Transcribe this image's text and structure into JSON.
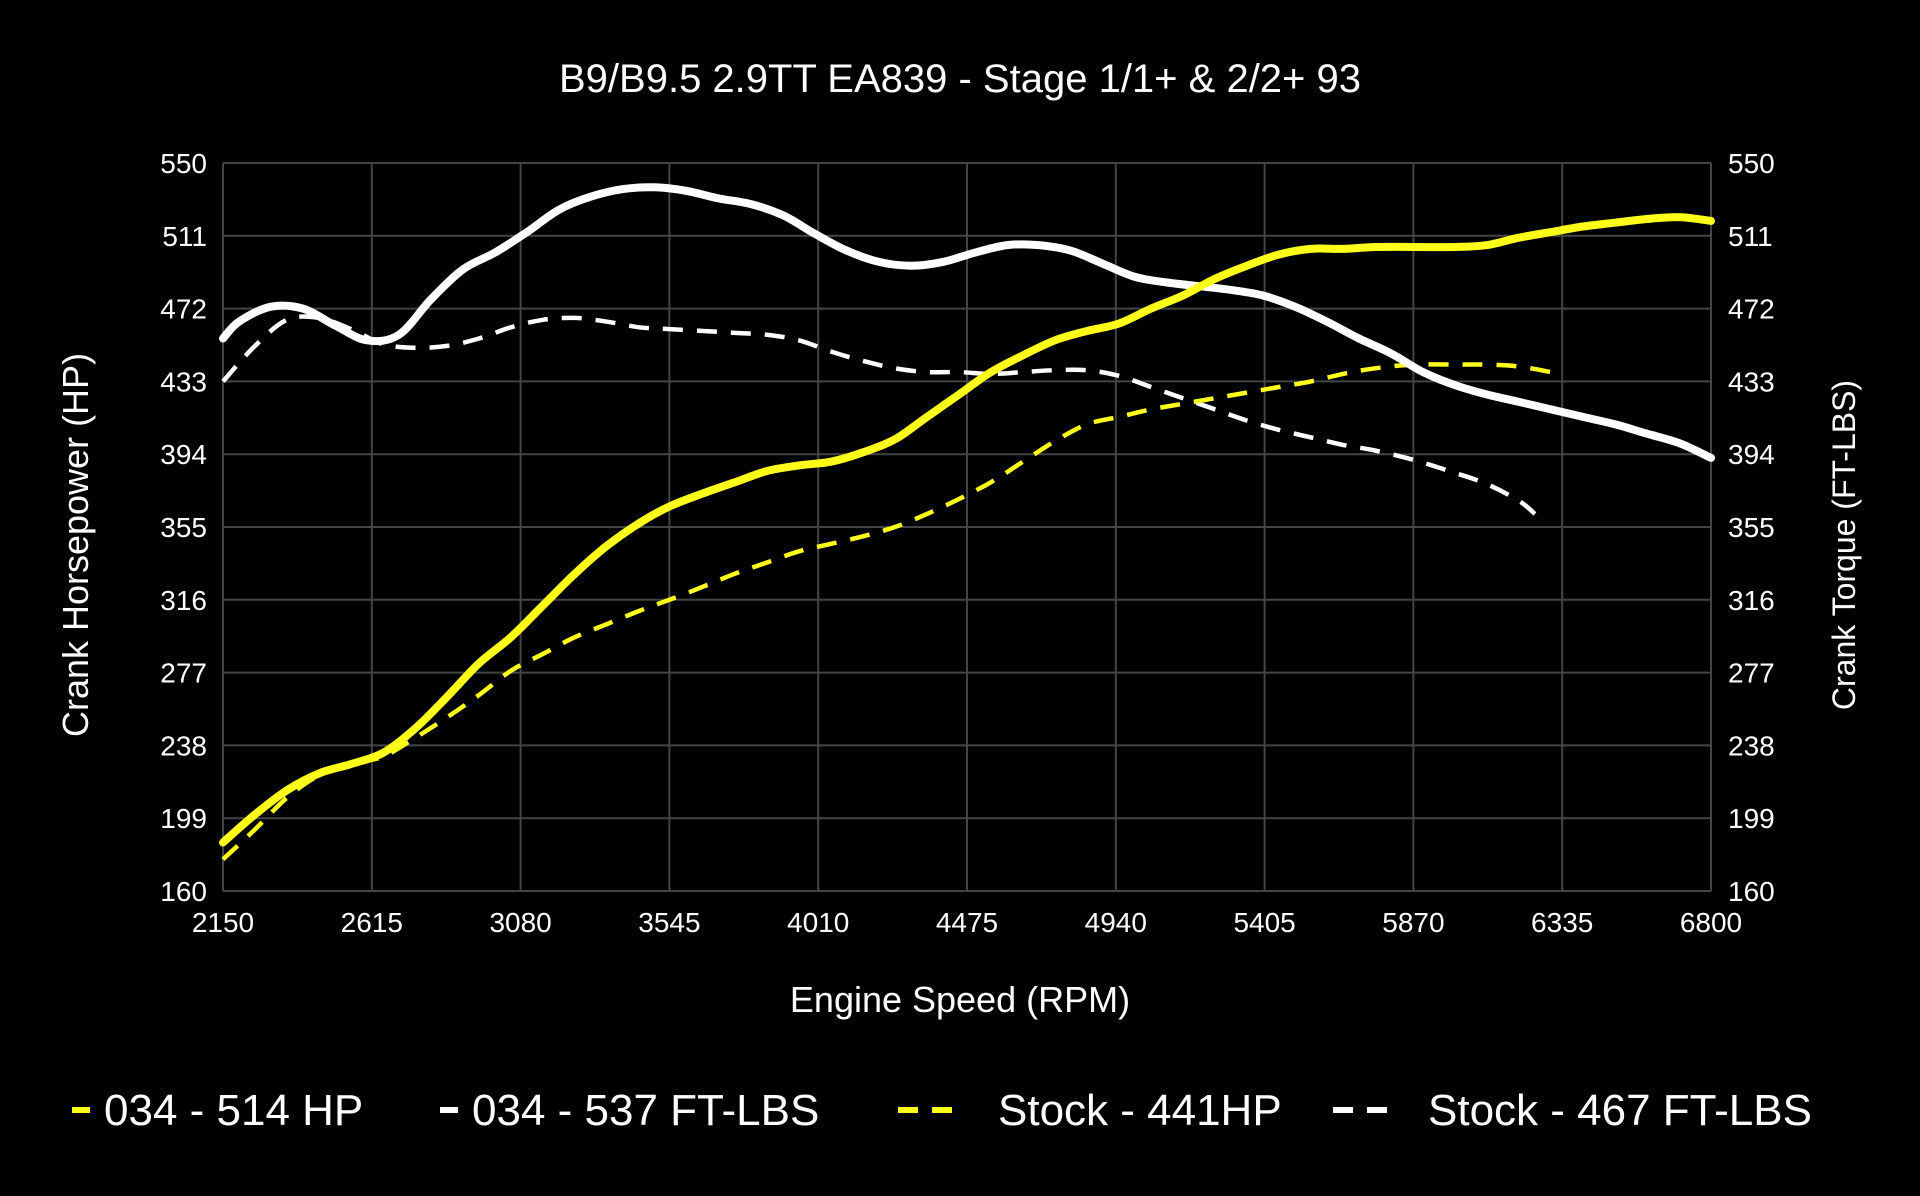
{
  "chart_data": {
    "type": "line",
    "title": "B9/B9.5 2.9TT EA839 - Stage 1/1+ & 2/2+ 93",
    "xlabel": "Engine Speed (RPM)",
    "ylabel_left": "Crank Horsepower (HP)",
    "ylabel_right": "Crank Torque (FT-LBS)",
    "xlim": [
      2150,
      6800
    ],
    "ylim": [
      160,
      550
    ],
    "x_ticks": [
      "2150",
      "2615",
      "3080",
      "3545",
      "4010",
      "4475",
      "4940",
      "5405",
      "5870",
      "6335",
      "6800"
    ],
    "y_ticks": [
      "160",
      "199",
      "238",
      "277",
      "316",
      "355",
      "394",
      "433",
      "472",
      "511",
      "550"
    ],
    "grid": true,
    "legend_position": "bottom",
    "series": [
      {
        "name": "034 - 514 HP",
        "color": "#ffff1a",
        "style": "solid",
        "points": [
          [
            2150,
            186
          ],
          [
            2250,
            201
          ],
          [
            2350,
            214
          ],
          [
            2450,
            223
          ],
          [
            2550,
            228
          ],
          [
            2650,
            234
          ],
          [
            2750,
            247
          ],
          [
            2850,
            264
          ],
          [
            2950,
            282
          ],
          [
            3050,
            296
          ],
          [
            3150,
            313
          ],
          [
            3250,
            330
          ],
          [
            3350,
            345
          ],
          [
            3450,
            357
          ],
          [
            3545,
            366
          ],
          [
            3650,
            373
          ],
          [
            3750,
            379
          ],
          [
            3850,
            385
          ],
          [
            3950,
            388
          ],
          [
            4050,
            390
          ],
          [
            4150,
            395
          ],
          [
            4250,
            402
          ],
          [
            4350,
            414
          ],
          [
            4450,
            426
          ],
          [
            4550,
            438
          ],
          [
            4650,
            447
          ],
          [
            4750,
            455
          ],
          [
            4850,
            460
          ],
          [
            4950,
            464
          ],
          [
            5050,
            472
          ],
          [
            5150,
            479
          ],
          [
            5250,
            488
          ],
          [
            5350,
            495
          ],
          [
            5450,
            501
          ],
          [
            5550,
            504
          ],
          [
            5650,
            504
          ],
          [
            5750,
            505
          ],
          [
            5870,
            505
          ],
          [
            6000,
            505
          ],
          [
            6100,
            506
          ],
          [
            6200,
            510
          ],
          [
            6300,
            513
          ],
          [
            6400,
            516
          ],
          [
            6500,
            518
          ],
          [
            6600,
            520
          ],
          [
            6700,
            521
          ],
          [
            6800,
            519
          ]
        ]
      },
      {
        "name": "034 - 537 FT-LBS",
        "color": "#ffffff",
        "style": "solid",
        "points": [
          [
            2150,
            456
          ],
          [
            2200,
            465
          ],
          [
            2300,
            473
          ],
          [
            2400,
            472
          ],
          [
            2500,
            463
          ],
          [
            2600,
            455
          ],
          [
            2700,
            458
          ],
          [
            2800,
            477
          ],
          [
            2900,
            493
          ],
          [
            3000,
            502
          ],
          [
            3100,
            513
          ],
          [
            3200,
            525
          ],
          [
            3300,
            532
          ],
          [
            3400,
            536
          ],
          [
            3500,
            537
          ],
          [
            3600,
            535
          ],
          [
            3700,
            531
          ],
          [
            3800,
            528
          ],
          [
            3900,
            522
          ],
          [
            4000,
            512
          ],
          [
            4100,
            503
          ],
          [
            4200,
            497
          ],
          [
            4300,
            495
          ],
          [
            4400,
            497
          ],
          [
            4500,
            502
          ],
          [
            4600,
            506
          ],
          [
            4700,
            506
          ],
          [
            4800,
            503
          ],
          [
            4900,
            496
          ],
          [
            5000,
            489
          ],
          [
            5100,
            486
          ],
          [
            5200,
            484
          ],
          [
            5300,
            482
          ],
          [
            5400,
            479
          ],
          [
            5500,
            473
          ],
          [
            5600,
            465
          ],
          [
            5700,
            456
          ],
          [
            5800,
            448
          ],
          [
            5900,
            438
          ],
          [
            6000,
            431
          ],
          [
            6100,
            426
          ],
          [
            6200,
            422
          ],
          [
            6300,
            418
          ],
          [
            6400,
            414
          ],
          [
            6500,
            410
          ],
          [
            6600,
            405
          ],
          [
            6700,
            400
          ],
          [
            6800,
            392
          ]
        ]
      },
      {
        "name": "Stock - 441HP",
        "color": "#ffff1a",
        "style": "dashed",
        "points": [
          [
            2150,
            177
          ],
          [
            2250,
            193
          ],
          [
            2350,
            210
          ],
          [
            2450,
            222
          ],
          [
            2550,
            228
          ],
          [
            2650,
            232
          ],
          [
            2750,
            242
          ],
          [
            2850,
            253
          ],
          [
            2950,
            265
          ],
          [
            3050,
            278
          ],
          [
            3150,
            287
          ],
          [
            3250,
            296
          ],
          [
            3350,
            303
          ],
          [
            3450,
            310
          ],
          [
            3545,
            316
          ],
          [
            3650,
            323
          ],
          [
            3750,
            330
          ],
          [
            3850,
            336
          ],
          [
            3950,
            342
          ],
          [
            4050,
            346
          ],
          [
            4150,
            350
          ],
          [
            4250,
            355
          ],
          [
            4350,
            362
          ],
          [
            4450,
            370
          ],
          [
            4550,
            379
          ],
          [
            4650,
            390
          ],
          [
            4750,
            401
          ],
          [
            4850,
            410
          ],
          [
            4950,
            414
          ],
          [
            5050,
            418
          ],
          [
            5150,
            421
          ],
          [
            5250,
            424
          ],
          [
            5350,
            427
          ],
          [
            5450,
            430
          ],
          [
            5550,
            433
          ],
          [
            5650,
            437
          ],
          [
            5750,
            440
          ],
          [
            5870,
            442
          ],
          [
            6000,
            442
          ],
          [
            6100,
            442
          ],
          [
            6200,
            441
          ],
          [
            6300,
            438
          ]
        ]
      },
      {
        "name": "Stock - 467 FT-LBS",
        "color": "#ffffff",
        "style": "dashed",
        "points": [
          [
            2150,
            433
          ],
          [
            2250,
            452
          ],
          [
            2350,
            466
          ],
          [
            2450,
            467
          ],
          [
            2550,
            461
          ],
          [
            2650,
            453
          ],
          [
            2750,
            451
          ],
          [
            2850,
            452
          ],
          [
            2950,
            456
          ],
          [
            3050,
            462
          ],
          [
            3150,
            466
          ],
          [
            3250,
            467
          ],
          [
            3350,
            465
          ],
          [
            3450,
            462
          ],
          [
            3545,
            461
          ],
          [
            3650,
            460
          ],
          [
            3750,
            459
          ],
          [
            3850,
            458
          ],
          [
            3950,
            455
          ],
          [
            4050,
            449
          ],
          [
            4150,
            444
          ],
          [
            4250,
            440
          ],
          [
            4350,
            438
          ],
          [
            4450,
            438
          ],
          [
            4550,
            437
          ],
          [
            4650,
            438
          ],
          [
            4750,
            439
          ],
          [
            4850,
            439
          ],
          [
            4950,
            436
          ],
          [
            5050,
            430
          ],
          [
            5150,
            424
          ],
          [
            5250,
            418
          ],
          [
            5350,
            412
          ],
          [
            5450,
            407
          ],
          [
            5550,
            403
          ],
          [
            5650,
            399
          ],
          [
            5750,
            396
          ],
          [
            5870,
            391
          ],
          [
            6000,
            384
          ],
          [
            6100,
            378
          ],
          [
            6200,
            369
          ],
          [
            6250,
            362
          ]
        ]
      }
    ]
  }
}
